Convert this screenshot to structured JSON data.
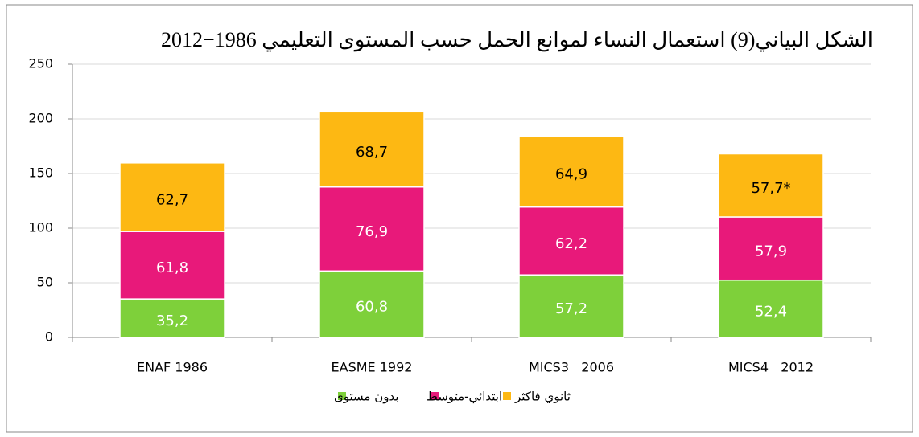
{
  "chart_data": {
    "type": "stacked_bar",
    "title": "الشكل البياني(9) استعمال النساء لموانع الحمل حسب المستوى التعليمي 1986−2012",
    "categories": [
      "ENAF 1986",
      "EASME 1992",
      "MICS3   2006",
      "MICS4   2012"
    ],
    "series": [
      {
        "name": "بدون مستوى",
        "color": "#7ed03a",
        "label_color": "#ffffff",
        "values": [
          35.2,
          60.8,
          57.2,
          52.4
        ],
        "value_labels": [
          "35,2",
          "60,8",
          "57,2",
          "52,4"
        ]
      },
      {
        "name": "ابتدائي-متوسط",
        "color": "#e8197a",
        "label_color": "#ffffff",
        "values": [
          61.8,
          76.9,
          62.2,
          57.9
        ],
        "value_labels": [
          "61,8",
          "76,9",
          "62,2",
          "57,9"
        ]
      },
      {
        "name": "ثانوي فاكثر",
        "color": "#fdb813",
        "label_color": "#000000",
        "values": [
          62.7,
          68.7,
          64.9,
          57.7
        ],
        "value_labels": [
          "62,7",
          "68,7",
          "64,9",
          "57,7*"
        ]
      }
    ],
    "ylim": [
      0,
      250
    ],
    "yticks": [
      0,
      50,
      100,
      150,
      200,
      250
    ],
    "grid": true,
    "legend": "bottom"
  }
}
